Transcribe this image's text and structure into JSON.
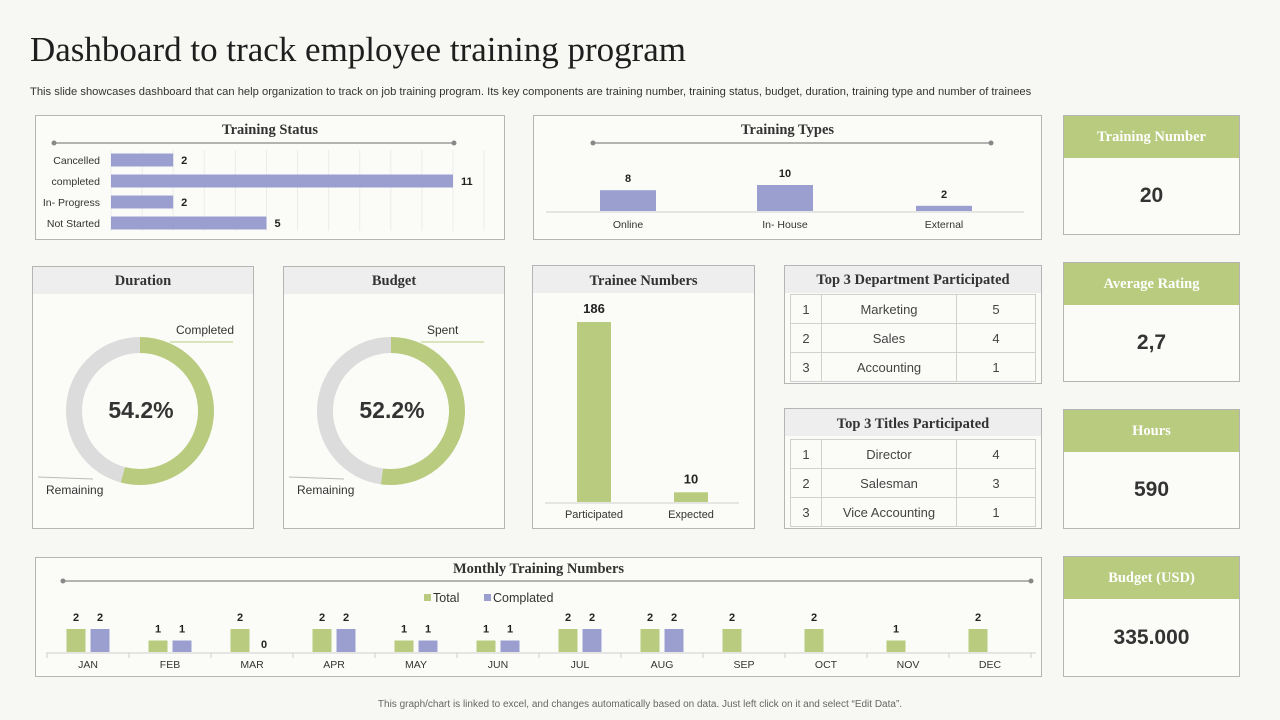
{
  "header": {
    "title": "Dashboard to track employee training program",
    "subtitle": "This slide showcases dashboard that can help organization to track on job training program. Its key components are training number, training status, budget, duration, training type and number of trainees"
  },
  "footer": "This graph/chart is linked to excel, and changes automatically based on data. Just left click on it and select “Edit Data”.",
  "colors": {
    "green": "#b8cb7e",
    "purple": "#9b9fd0",
    "gray": "#dcdcdc"
  },
  "chart_data": [
    {
      "type": "bar",
      "orientation": "horizontal",
      "title": "Training Status",
      "categories": [
        "Cancelled",
        "completed",
        "In- Progress",
        "Not Started"
      ],
      "values": [
        2,
        11,
        2,
        5
      ]
    },
    {
      "type": "bar",
      "title": "Training Types",
      "categories": [
        "Online",
        "In- House",
        "External"
      ],
      "values": [
        8,
        10,
        2
      ]
    },
    {
      "type": "pie",
      "title": "Duration",
      "center_label": "54.2%",
      "slices": [
        {
          "label": "Completed",
          "value": 54.2
        },
        {
          "label": "Remaining",
          "value": 45.8
        }
      ]
    },
    {
      "type": "pie",
      "title": "Budget",
      "center_label": "52.2%",
      "slices": [
        {
          "label": "Spent",
          "value": 52.2
        },
        {
          "label": "Remaining",
          "value": 47.8
        }
      ]
    },
    {
      "type": "bar",
      "title": "Trainee Numbers",
      "categories": [
        "Participated",
        "Expected"
      ],
      "values": [
        186,
        10
      ]
    },
    {
      "type": "bar",
      "title": "Monthly Training Numbers",
      "categories": [
        "JAN",
        "FEB",
        "MAR",
        "APR",
        "MAY",
        "JUN",
        "JUL",
        "AUG",
        "SEP",
        "OCT",
        "NOV",
        "DEC"
      ],
      "series": [
        {
          "name": "Total",
          "values": [
            2,
            1,
            2,
            2,
            1,
            1,
            2,
            2,
            2,
            2,
            1,
            2
          ]
        },
        {
          "name": "Complated",
          "values": [
            2,
            1,
            0,
            2,
            1,
            1,
            2,
            2,
            null,
            null,
            null,
            null
          ]
        }
      ]
    },
    {
      "type": "table",
      "title": "Top 3 Department  Participated",
      "rows": [
        [
          "1",
          "Marketing",
          "5"
        ],
        [
          "2",
          "Sales",
          "4"
        ],
        [
          "3",
          "Accounting",
          "1"
        ]
      ]
    },
    {
      "type": "table",
      "title": "Top 3 Titles Participated",
      "rows": [
        [
          "1",
          "Director",
          "4"
        ],
        [
          "2",
          "Salesman",
          "3"
        ],
        [
          "3",
          "Vice Accounting",
          "1"
        ]
      ]
    }
  ],
  "kpis": [
    {
      "label": "Training  Number",
      "value": "20"
    },
    {
      "label": "Average Rating",
      "value": "2,7"
    },
    {
      "label": "Hours",
      "value": "590"
    },
    {
      "label": "Budget (USD)",
      "value": "335.000"
    }
  ]
}
